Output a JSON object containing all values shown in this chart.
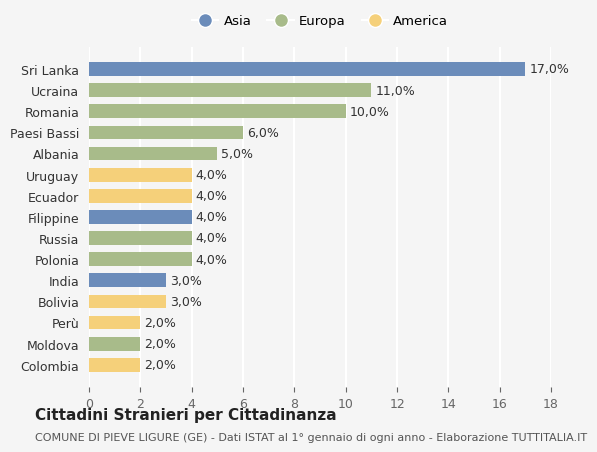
{
  "countries": [
    "Sri Lanka",
    "Ucraina",
    "Romania",
    "Paesi Bassi",
    "Albania",
    "Uruguay",
    "Ecuador",
    "Filippine",
    "Russia",
    "Polonia",
    "India",
    "Bolivia",
    "Perù",
    "Moldova",
    "Colombia"
  ],
  "values": [
    17.0,
    11.0,
    10.0,
    6.0,
    5.0,
    4.0,
    4.0,
    4.0,
    4.0,
    4.0,
    3.0,
    3.0,
    2.0,
    2.0,
    2.0
  ],
  "continents": [
    "Asia",
    "Europa",
    "Europa",
    "Europa",
    "Europa",
    "America",
    "America",
    "Asia",
    "Europa",
    "Europa",
    "Asia",
    "America",
    "America",
    "Europa",
    "America"
  ],
  "colors": {
    "Asia": "#6b8cba",
    "Europa": "#a8bb8a",
    "America": "#f5d07a"
  },
  "legend_labels": [
    "Asia",
    "Europa",
    "America"
  ],
  "title": "Cittadini Stranieri per Cittadinanza",
  "subtitle": "COMUNE DI PIEVE LIGURE (GE) - Dati ISTAT al 1° gennaio di ogni anno - Elaborazione TUTTITALIA.IT",
  "xlim": [
    0,
    18
  ],
  "xticks": [
    0,
    2,
    4,
    6,
    8,
    10,
    12,
    14,
    16,
    18
  ],
  "background_color": "#f5f5f5",
  "grid_color": "#ffffff",
  "label_fontsize": 9,
  "title_fontsize": 11,
  "subtitle_fontsize": 8
}
